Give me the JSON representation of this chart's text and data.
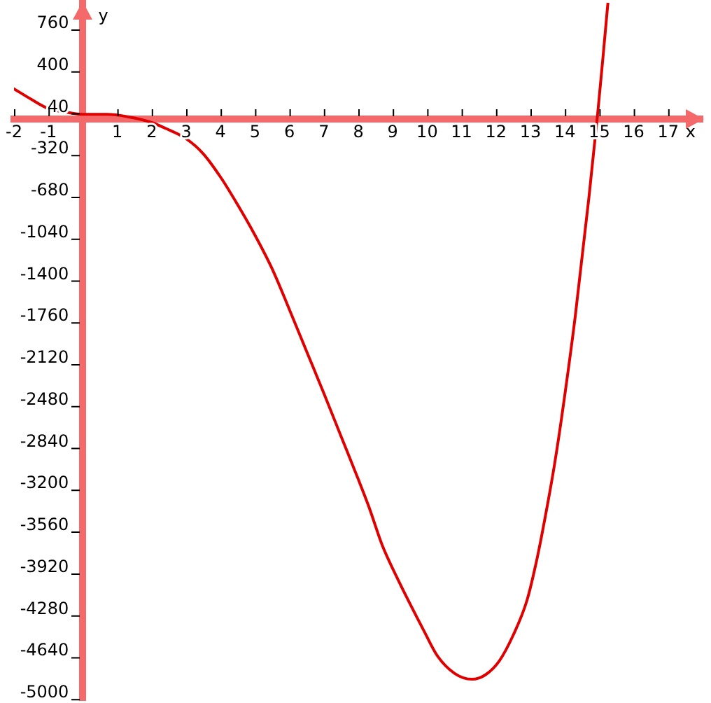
{
  "chart_data": {
    "type": "line",
    "xlabel": "x",
    "ylabel": "y",
    "x": [
      -2,
      -1.5,
      -1,
      -0.5,
      0,
      0.7,
      1.3,
      2,
      2.4,
      3,
      3.5,
      4,
      4.5,
      5,
      5.5,
      6,
      6.5,
      7,
      7.5,
      8,
      8.3,
      8.7,
      9.1,
      9.5,
      9.9,
      10.3,
      10.8,
      11.3,
      11.7,
      12.1,
      12.5,
      12.9,
      13.2,
      13.5,
      13.7,
      13.9,
      14.3,
      14.7,
      14.95,
      15.1,
      15.25
    ],
    "series": [
      {
        "color": "#e00000",
        "values": [
          260,
          170,
          90,
          60,
          40,
          40,
          20,
          -30,
          -80,
          -170,
          -300,
          -500,
          -740,
          -1000,
          -1290,
          -1640,
          -2000,
          -2360,
          -2730,
          -3100,
          -3330,
          -3670,
          -3930,
          -4170,
          -4400,
          -4620,
          -4770,
          -4820,
          -4780,
          -4660,
          -4440,
          -4140,
          -3770,
          -3310,
          -2970,
          -2580,
          -1700,
          -670,
          40,
          510,
          1000
        ]
      }
    ],
    "xlim": [
      -2,
      18
    ],
    "ylim": [
      -5000,
      1000
    ],
    "xticks": [
      -2,
      -1,
      1,
      2,
      3,
      4,
      5,
      6,
      7,
      8,
      9,
      10,
      11,
      12,
      13,
      14,
      15,
      16,
      17
    ],
    "yticks": [
      -5000,
      -4640,
      -4280,
      -3920,
      -3560,
      -3200,
      -2840,
      -2480,
      -2120,
      -1760,
      -1400,
      -1040,
      -680,
      -320,
      40,
      400,
      760
    ],
    "marker": "none"
  }
}
